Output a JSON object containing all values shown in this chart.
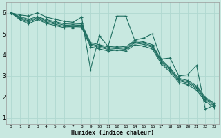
{
  "xlabel": "Humidex (Indice chaleur)",
  "xlim": [
    -0.5,
    23.5
  ],
  "ylim": [
    0.7,
    6.5
  ],
  "xticks": [
    0,
    1,
    2,
    3,
    4,
    5,
    6,
    7,
    8,
    9,
    10,
    11,
    12,
    13,
    14,
    15,
    16,
    17,
    18,
    19,
    20,
    21,
    22,
    23
  ],
  "yticks": [
    1,
    2,
    3,
    4,
    5,
    6
  ],
  "bg_color": "#c8e8e0",
  "grid_color": "#b0d8d0",
  "line_color": "#1e6e60",
  "lines": [
    [
      6.0,
      5.9,
      5.85,
      6.0,
      5.8,
      5.7,
      5.6,
      5.55,
      5.8,
      3.3,
      4.9,
      4.4,
      5.85,
      5.85,
      4.7,
      4.8,
      5.0,
      3.8,
      3.85,
      3.0,
      3.05,
      3.5,
      1.4,
      1.6
    ],
    [
      6.0,
      5.82,
      5.7,
      5.82,
      5.68,
      5.58,
      5.48,
      5.46,
      5.48,
      4.58,
      4.48,
      4.38,
      4.42,
      4.38,
      4.68,
      4.62,
      4.48,
      3.78,
      3.38,
      2.88,
      2.78,
      2.52,
      1.98,
      1.68
    ],
    [
      6.0,
      5.78,
      5.62,
      5.78,
      5.62,
      5.52,
      5.42,
      5.4,
      5.42,
      4.52,
      4.42,
      4.32,
      4.36,
      4.32,
      4.62,
      4.56,
      4.42,
      3.72,
      3.32,
      2.82,
      2.72,
      2.46,
      1.92,
      1.62
    ],
    [
      6.0,
      5.74,
      5.56,
      5.74,
      5.56,
      5.46,
      5.36,
      5.34,
      5.36,
      4.46,
      4.36,
      4.26,
      4.3,
      4.26,
      4.56,
      4.5,
      4.36,
      3.66,
      3.26,
      2.76,
      2.66,
      2.4,
      1.86,
      1.56
    ],
    [
      6.0,
      5.68,
      5.48,
      5.68,
      5.5,
      5.4,
      5.3,
      5.28,
      5.3,
      4.38,
      4.28,
      4.18,
      4.22,
      4.18,
      4.48,
      4.42,
      4.28,
      3.58,
      3.18,
      2.68,
      2.58,
      2.32,
      1.78,
      1.48
    ]
  ]
}
